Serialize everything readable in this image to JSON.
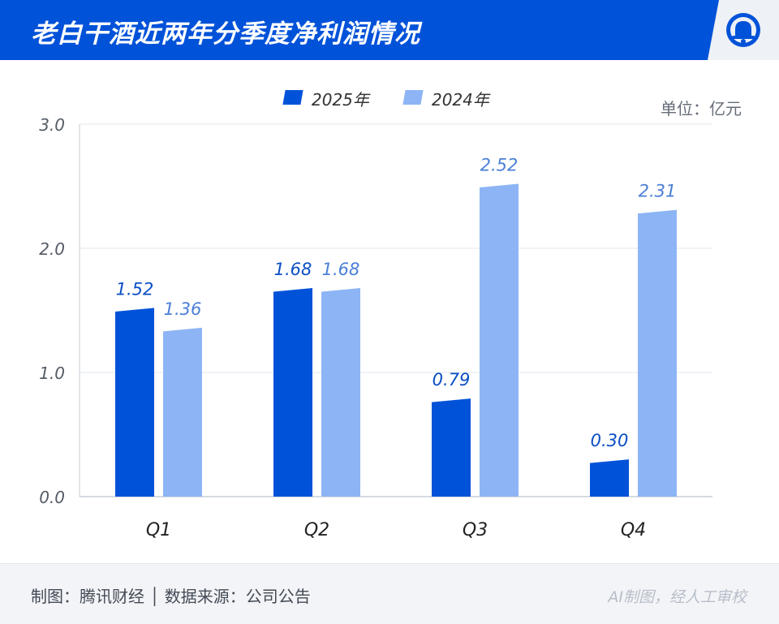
{
  "header": {
    "title": "老白干酒近两年分季度净利润情况"
  },
  "unit_label": "单位：亿元",
  "footer": {
    "left": "制图：腾讯财经 │ 数据来源：公司公告",
    "right": "AI制图，经人工审校"
  },
  "colors": {
    "header_bg": "#0052d9",
    "series_2025": "#0052d9",
    "series_2024": "#8db5f5"
  },
  "chart_data": {
    "type": "bar",
    "title": "老白干酒近两年分季度净利润情况",
    "ylabel": "单位：亿元",
    "categories": [
      "Q1",
      "Q2",
      "Q3",
      "Q4"
    ],
    "series": [
      {
        "name": "2025年",
        "values": [
          1.52,
          1.68,
          0.79,
          0.3
        ],
        "labels": [
          "1.52",
          "1.68",
          "0.79",
          "0.30"
        ]
      },
      {
        "name": "2024年",
        "values": [
          1.36,
          1.68,
          2.52,
          2.31
        ],
        "labels": [
          "1.36",
          "1.68",
          "2.52",
          "2.31"
        ]
      }
    ],
    "ylim": [
      0,
      3
    ],
    "yticks": [
      "0.0",
      "1.0",
      "2.0",
      "3.0"
    ],
    "grid": true,
    "legend": "top-center"
  }
}
